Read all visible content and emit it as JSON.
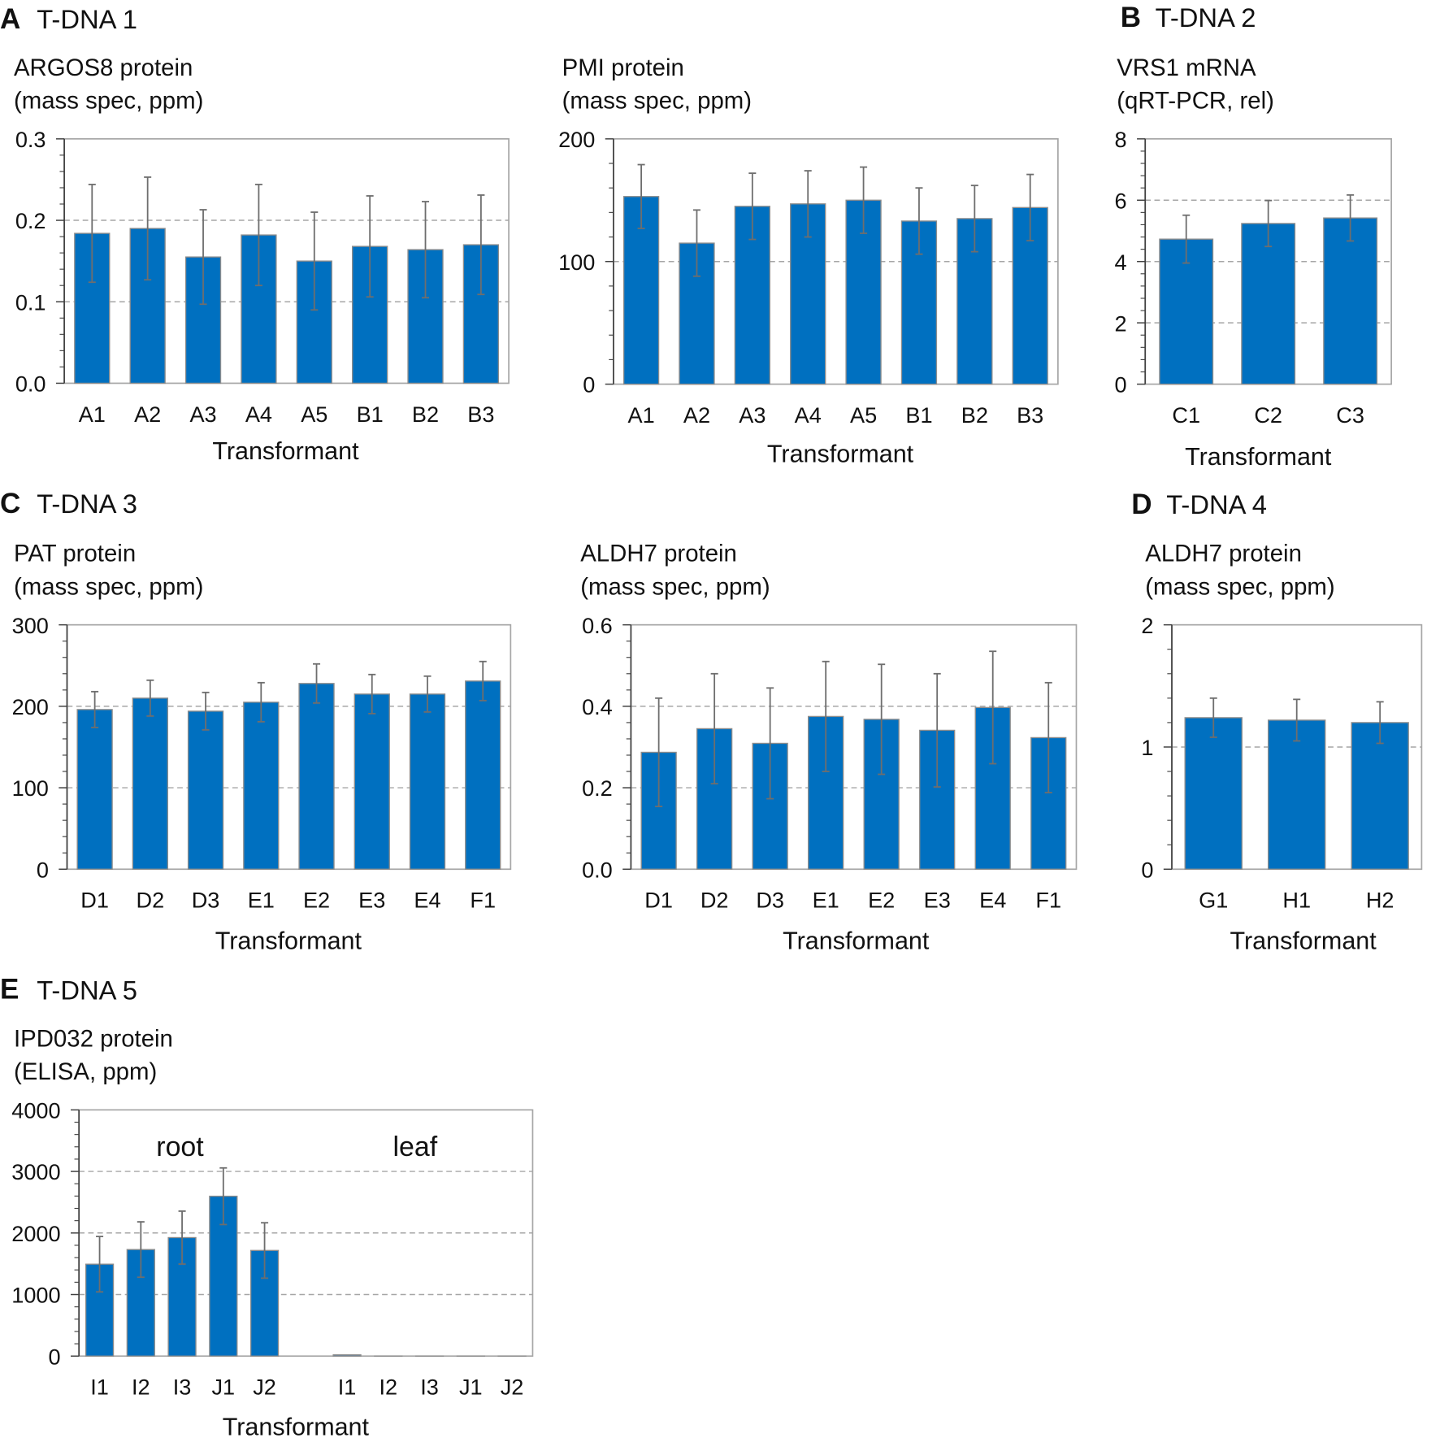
{
  "panels": [
    {
      "letter": "A",
      "label": "T-DNA 1"
    },
    {
      "letter": "B",
      "label": "T-DNA 2"
    },
    {
      "letter": "C",
      "label": "T-DNA 3"
    },
    {
      "letter": "D",
      "label": "T-DNA 4"
    },
    {
      "letter": "E",
      "label": "T-DNA 5"
    }
  ],
  "colors": {
    "bar": "#0070C0",
    "bar_edge": "#8c8c8c",
    "error": "#6e6e6e",
    "grid": "#a6a6a6",
    "frame": "#a6a6a6",
    "axis": "#404040"
  },
  "chart_data": [
    {
      "type": "bar",
      "panel": "A",
      "title": [
        "ARGOS8  protein",
        "(mass spec, ppm)"
      ],
      "xlabel": "Transformant",
      "ylabel": "",
      "categories": [
        "A1",
        "A2",
        "A3",
        "A4",
        "A5",
        "B1",
        "B2",
        "B3"
      ],
      "values": [
        0.184,
        0.19,
        0.155,
        0.182,
        0.15,
        0.168,
        0.164,
        0.17
      ],
      "errors": [
        0.06,
        0.063,
        0.058,
        0.062,
        0.06,
        0.062,
        0.059,
        0.061
      ],
      "ylim": [
        0,
        0.3
      ],
      "yticks": [
        "0.0",
        "0.1",
        "0.2",
        "0.3"
      ],
      "grid": "dashed-major"
    },
    {
      "type": "bar",
      "panel": "A",
      "title": [
        "PMI  protein",
        "(mass spec, ppm)"
      ],
      "xlabel": "Transformant",
      "ylabel": "",
      "categories": [
        "A1",
        "A2",
        "A3",
        "A4",
        "A5",
        "B1",
        "B2",
        "B3"
      ],
      "values": [
        153,
        115,
        145,
        147,
        150,
        133,
        135,
        144
      ],
      "errors": [
        26,
        27,
        27,
        27,
        27,
        27,
        27,
        27
      ],
      "ylim": [
        0,
        200
      ],
      "yticks": [
        "0",
        "100",
        "200"
      ],
      "grid": "dashed-major"
    },
    {
      "type": "bar",
      "panel": "B",
      "title": [
        "VRS1  mRNA",
        "(qRT-PCR,  rel)"
      ],
      "xlabel": "Transformant",
      "ylabel": "",
      "categories": [
        "C1",
        "C2",
        "C3"
      ],
      "values": [
        4.73,
        5.24,
        5.42
      ],
      "errors": [
        0.78,
        0.75,
        0.75
      ],
      "ylim": [
        0,
        8
      ],
      "yticks": [
        "0",
        "2",
        "4",
        "6",
        "8"
      ],
      "grid": "dashed-major"
    },
    {
      "type": "bar",
      "panel": "C",
      "title": [
        "PAT  protein",
        "(mass spec, ppm)"
      ],
      "xlabel": "Transformant",
      "ylabel": "",
      "categories": [
        "D1",
        "D2",
        "D3",
        "E1",
        "E2",
        "E3",
        "E4",
        "F1"
      ],
      "values": [
        196,
        210,
        194,
        205,
        228,
        215,
        215,
        231
      ],
      "errors": [
        22,
        22,
        23,
        24,
        24,
        24,
        22,
        24
      ],
      "ylim": [
        0,
        300
      ],
      "yticks": [
        "0",
        "100",
        "200",
        "300"
      ],
      "grid": "dashed-major"
    },
    {
      "type": "bar",
      "panel": "C",
      "title": [
        "ALDH7  protein",
        "(mass spec, ppm)"
      ],
      "xlabel": "Transformant",
      "ylabel": "",
      "categories": [
        "D1",
        "D2",
        "D3",
        "E1",
        "E2",
        "E3",
        "E4",
        "F1"
      ],
      "values": [
        0.287,
        0.345,
        0.309,
        0.375,
        0.368,
        0.341,
        0.397,
        0.323
      ],
      "errors": [
        0.133,
        0.135,
        0.136,
        0.135,
        0.135,
        0.139,
        0.138,
        0.135
      ],
      "ylim": [
        0,
        0.6
      ],
      "yticks": [
        "0.0",
        "0.2",
        "0.4",
        "0.6"
      ],
      "grid": "dashed-major"
    },
    {
      "type": "bar",
      "panel": "D",
      "title": [
        "ALDH7  protein",
        "(mass spec, ppm)"
      ],
      "xlabel": "Transformant",
      "ylabel": "",
      "categories": [
        "G1",
        "H1",
        "H2"
      ],
      "values": [
        1.24,
        1.22,
        1.2
      ],
      "errors": [
        0.16,
        0.17,
        0.17
      ],
      "ylim": [
        0,
        2
      ],
      "yticks": [
        "0",
        "1",
        "2"
      ],
      "grid": "dashed-major"
    },
    {
      "type": "bar",
      "panel": "E",
      "title": [
        "IPD032 protein",
        "(ELISA, ppm)"
      ],
      "xlabel": "Transformant",
      "ylabel": "",
      "categories": [
        "I1",
        "I2",
        "I3",
        "J1",
        "J2",
        "",
        "I1",
        "I2",
        "I3",
        "J1",
        "J2"
      ],
      "values": [
        1493,
        1731,
        1925,
        2597,
        1716,
        null,
        20,
        0,
        0,
        0,
        0
      ],
      "errors": [
        450,
        450,
        430,
        460,
        450,
        null,
        0,
        0,
        0,
        0,
        0
      ],
      "ylim": [
        0,
        4000
      ],
      "yticks": [
        "0",
        "1000",
        "2000",
        "3000",
        "4000"
      ],
      "grid": "dashed-major",
      "annotations": [
        "root",
        "leaf"
      ]
    }
  ]
}
